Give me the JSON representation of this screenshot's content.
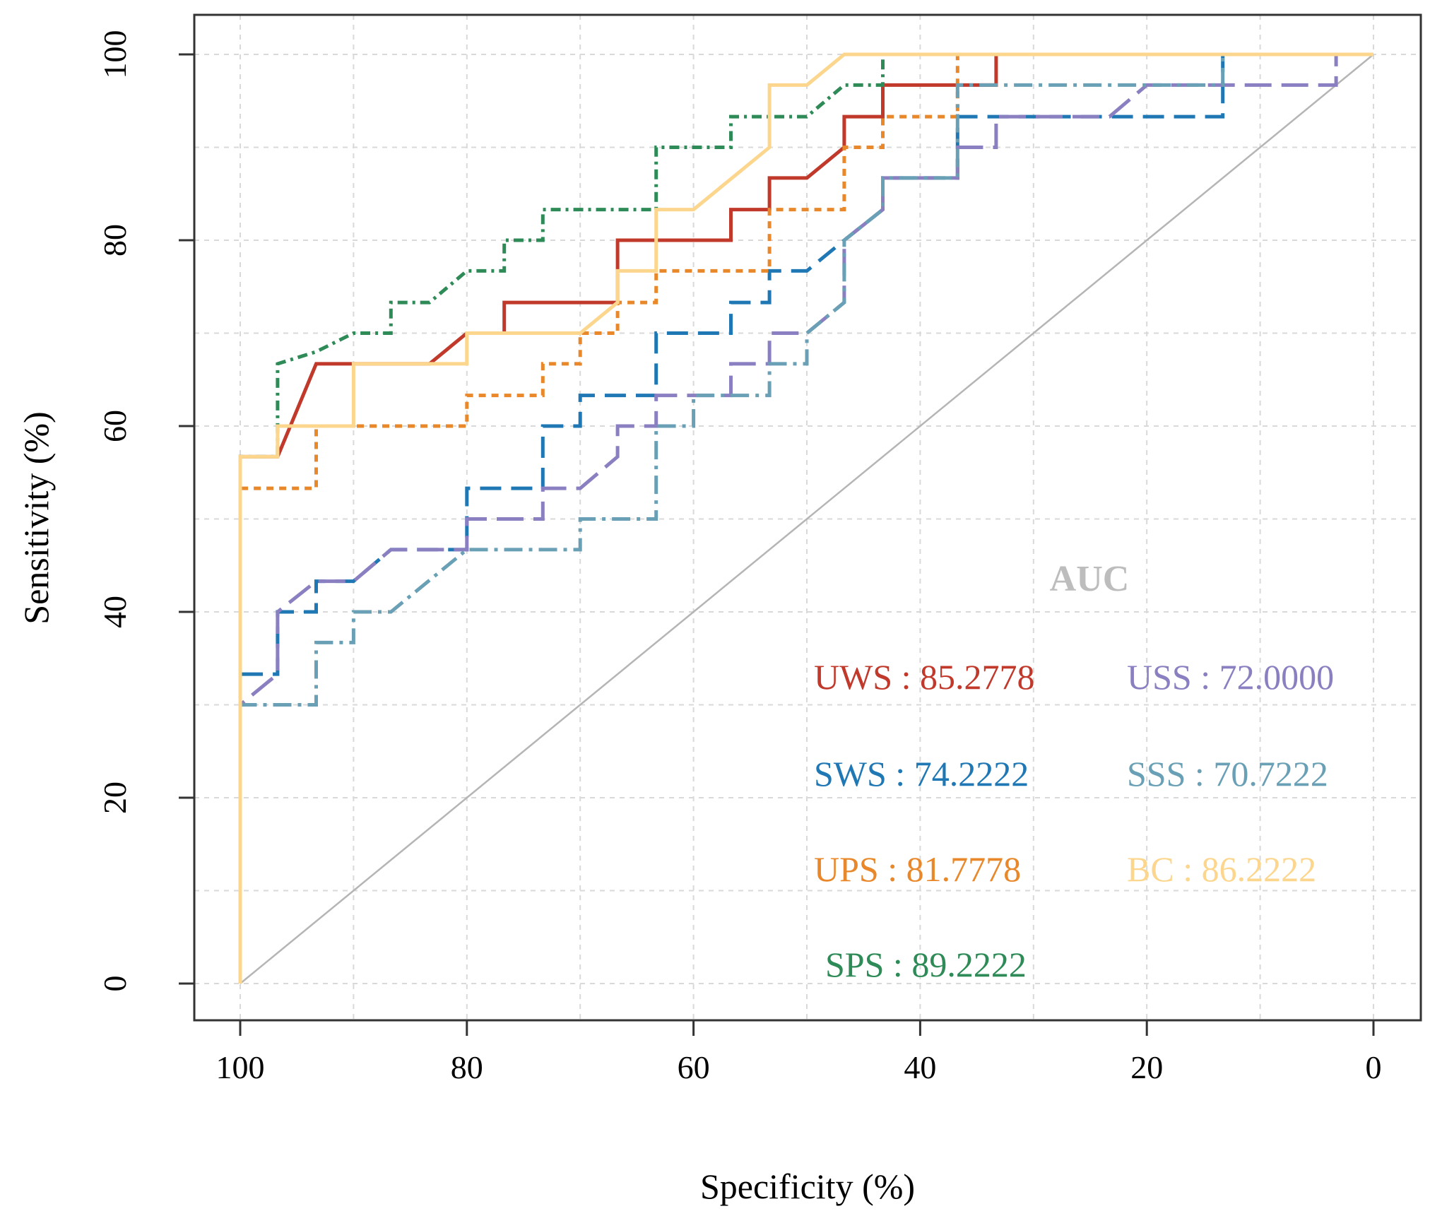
{
  "chart_data": {
    "type": "line",
    "title": "",
    "xlabel": "Specificity (%)",
    "ylabel": "Sensitivity (%)",
    "xlim": [
      100,
      0
    ],
    "ylim": [
      0,
      100
    ],
    "x_reversed": true,
    "x_ticks": [
      100,
      80,
      60,
      40,
      20,
      0
    ],
    "y_ticks": [
      0,
      20,
      40,
      60,
      80,
      100
    ],
    "grid": true,
    "reference_line": {
      "name": "chance",
      "color": "#b5b5b5",
      "points": [
        [
          100,
          0
        ],
        [
          0,
          100
        ]
      ]
    },
    "legend_title": "AUC",
    "legend_position": "bottom-right",
    "series": [
      {
        "id": "uws",
        "name": "UWS",
        "auc": "85.2778",
        "color": "#c0392b",
        "dash": "",
        "points": [
          [
            100,
            0
          ],
          [
            100,
            56.7
          ],
          [
            96.7,
            56.7
          ],
          [
            93.3,
            66.7
          ],
          [
            83.3,
            66.7
          ],
          [
            80,
            70
          ],
          [
            76.7,
            70
          ],
          [
            76.7,
            73.3
          ],
          [
            66.7,
            73.3
          ],
          [
            66.7,
            80
          ],
          [
            56.7,
            80
          ],
          [
            56.7,
            83.3
          ],
          [
            53.3,
            83.3
          ],
          [
            53.3,
            86.7
          ],
          [
            50,
            86.7
          ],
          [
            46.7,
            90
          ],
          [
            46.7,
            93.3
          ],
          [
            43.3,
            93.3
          ],
          [
            43.3,
            96.7
          ],
          [
            33.3,
            96.7
          ],
          [
            33.3,
            100
          ],
          [
            0,
            100
          ]
        ]
      },
      {
        "id": "sws",
        "name": "SWS",
        "auc": "74.2222",
        "color": "#1f77b4",
        "dash": "30 14",
        "points": [
          [
            100,
            0
          ],
          [
            100,
            33.3
          ],
          [
            96.7,
            33.3
          ],
          [
            96.7,
            40
          ],
          [
            93.3,
            40
          ],
          [
            93.3,
            43.3
          ],
          [
            90,
            43.3
          ],
          [
            86.7,
            46.7
          ],
          [
            80,
            46.7
          ],
          [
            80,
            53.3
          ],
          [
            73.3,
            53.3
          ],
          [
            73.3,
            60
          ],
          [
            70,
            60
          ],
          [
            70,
            63.3
          ],
          [
            63.3,
            63.3
          ],
          [
            63.3,
            70
          ],
          [
            56.7,
            70
          ],
          [
            56.7,
            73.3
          ],
          [
            53.3,
            73.3
          ],
          [
            53.3,
            76.7
          ],
          [
            50,
            76.7
          ],
          [
            46.7,
            80
          ],
          [
            43.3,
            83.3
          ],
          [
            43.3,
            86.7
          ],
          [
            36.7,
            86.7
          ],
          [
            36.7,
            93.3
          ],
          [
            13.3,
            93.3
          ],
          [
            13.3,
            100
          ],
          [
            0,
            100
          ]
        ]
      },
      {
        "id": "ups",
        "name": "UPS",
        "auc": "81.7778",
        "color": "#e8882a",
        "dash": "10 8",
        "points": [
          [
            100,
            0
          ],
          [
            100,
            53.3
          ],
          [
            93.3,
            53.3
          ],
          [
            93.3,
            60
          ],
          [
            80,
            60
          ],
          [
            80,
            63.3
          ],
          [
            73.3,
            63.3
          ],
          [
            73.3,
            66.7
          ],
          [
            70,
            66.7
          ],
          [
            70,
            70
          ],
          [
            66.7,
            70
          ],
          [
            66.7,
            73.3
          ],
          [
            63.3,
            73.3
          ],
          [
            63.3,
            76.7
          ],
          [
            53.3,
            76.7
          ],
          [
            53.3,
            83.3
          ],
          [
            46.7,
            83.3
          ],
          [
            46.7,
            90
          ],
          [
            43.3,
            90
          ],
          [
            43.3,
            93.3
          ],
          [
            36.7,
            93.3
          ],
          [
            36.7,
            100
          ],
          [
            0,
            100
          ]
        ]
      },
      {
        "id": "sps",
        "name": "SPS",
        "auc": "89.2222",
        "color": "#2e8b57",
        "dash": "14 7 4 7",
        "points": [
          [
            100,
            0
          ],
          [
            100,
            56.7
          ],
          [
            96.7,
            56.7
          ],
          [
            96.7,
            66.7
          ],
          [
            93.3,
            68
          ],
          [
            90,
            70
          ],
          [
            86.7,
            70
          ],
          [
            86.7,
            73.3
          ],
          [
            83.3,
            73.3
          ],
          [
            80,
            76.7
          ],
          [
            76.7,
            76.7
          ],
          [
            76.7,
            80
          ],
          [
            73.3,
            80
          ],
          [
            73.3,
            83.3
          ],
          [
            63.3,
            83.3
          ],
          [
            63.3,
            90
          ],
          [
            56.7,
            90
          ],
          [
            56.7,
            93.3
          ],
          [
            50,
            93.3
          ],
          [
            46.7,
            96.7
          ],
          [
            43.3,
            96.7
          ],
          [
            43.3,
            100
          ],
          [
            0,
            100
          ]
        ]
      },
      {
        "id": "uss",
        "name": "USS",
        "auc": "72.0000",
        "color": "#8a7fc0",
        "dash": "38 14",
        "points": [
          [
            100,
            0
          ],
          [
            100,
            30
          ],
          [
            96.7,
            33.3
          ],
          [
            96.7,
            40
          ],
          [
            93.3,
            43.3
          ],
          [
            90,
            43.3
          ],
          [
            86.7,
            46.7
          ],
          [
            80,
            46.7
          ],
          [
            80,
            50
          ],
          [
            73.3,
            50
          ],
          [
            73.3,
            53.3
          ],
          [
            70,
            53.3
          ],
          [
            66.7,
            56.7
          ],
          [
            66.7,
            60
          ],
          [
            63.3,
            60
          ],
          [
            63.3,
            63.3
          ],
          [
            56.7,
            63.3
          ],
          [
            56.7,
            66.7
          ],
          [
            53.3,
            66.7
          ],
          [
            53.3,
            70
          ],
          [
            50,
            70
          ],
          [
            46.7,
            73.3
          ],
          [
            46.7,
            80
          ],
          [
            43.3,
            83.3
          ],
          [
            43.3,
            86.7
          ],
          [
            36.7,
            86.7
          ],
          [
            36.7,
            90
          ],
          [
            33.3,
            90
          ],
          [
            33.3,
            93.3
          ],
          [
            23.3,
            93.3
          ],
          [
            20,
            96.7
          ],
          [
            3.3,
            96.7
          ],
          [
            3.3,
            100
          ],
          [
            0,
            100
          ]
        ]
      },
      {
        "id": "sss",
        "name": "SSS",
        "auc": "70.7222",
        "color": "#6aa0b5",
        "dash": "26 9 5 9",
        "points": [
          [
            100,
            0
          ],
          [
            100,
            30
          ],
          [
            93.3,
            30
          ],
          [
            93.3,
            36.7
          ],
          [
            90,
            36.7
          ],
          [
            90,
            40
          ],
          [
            86.7,
            40
          ],
          [
            80,
            46.7
          ],
          [
            70,
            46.7
          ],
          [
            70,
            50
          ],
          [
            63.3,
            50
          ],
          [
            63.3,
            60
          ],
          [
            60,
            60
          ],
          [
            60,
            63.3
          ],
          [
            53.3,
            63.3
          ],
          [
            53.3,
            66.7
          ],
          [
            50,
            66.7
          ],
          [
            50,
            70
          ],
          [
            46.7,
            73.3
          ],
          [
            46.7,
            80
          ],
          [
            43.3,
            83.3
          ],
          [
            43.3,
            86.7
          ],
          [
            36.7,
            86.7
          ],
          [
            36.7,
            96.7
          ],
          [
            13.3,
            96.7
          ],
          [
            13.3,
            100
          ],
          [
            0,
            100
          ]
        ]
      },
      {
        "id": "bc",
        "name": "BC",
        "auc": "86.2222",
        "color": "#fdd68e",
        "dash": "",
        "points": [
          [
            100,
            0
          ],
          [
            100,
            56.7
          ],
          [
            96.7,
            56.7
          ],
          [
            96.7,
            60
          ],
          [
            90,
            60
          ],
          [
            90,
            66.7
          ],
          [
            80,
            66.7
          ],
          [
            80,
            70
          ],
          [
            70,
            70
          ],
          [
            66.7,
            73.3
          ],
          [
            66.7,
            76.7
          ],
          [
            63.3,
            76.7
          ],
          [
            63.3,
            83.3
          ],
          [
            60,
            83.3
          ],
          [
            53.3,
            90
          ],
          [
            53.3,
            96.7
          ],
          [
            50,
            96.7
          ],
          [
            46.7,
            100
          ],
          [
            0,
            100
          ]
        ]
      }
    ]
  }
}
